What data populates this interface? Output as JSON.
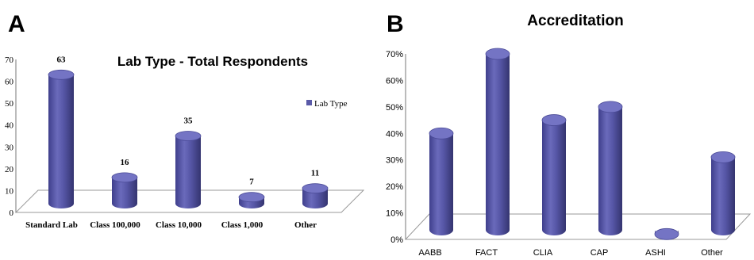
{
  "panels": {
    "a": {
      "letter": "A"
    },
    "b": {
      "letter": "B"
    }
  },
  "colors": {
    "bar_body": "#5a5aa8",
    "bar_dark": "#3d3d86",
    "bar_light": "#8c8cd0",
    "bar_top": "#6f6fbf",
    "axis": "#555555",
    "text": "#000000"
  },
  "chart_data": [
    {
      "type": "bar",
      "title": "Lab Type - Total Respondents",
      "categories": [
        "Standard Lab",
        "Class 100,000",
        "Class 10,000",
        "Class 1,000",
        "Other"
      ],
      "series": [
        {
          "name": "Lab Type",
          "values": [
            63,
            16,
            35,
            7,
            11
          ]
        }
      ],
      "data_labels": [
        "63",
        "16",
        "35",
        "7",
        "11"
      ],
      "ylim": [
        0,
        70
      ],
      "yticks": [
        "0",
        "10",
        "20",
        "30",
        "40",
        "50",
        "60",
        "70"
      ],
      "legend": "right",
      "style": "3d-cylinder"
    },
    {
      "type": "bar",
      "title": "Accreditation",
      "categories": [
        "AABB",
        "FACT",
        "CLIA",
        "CAP",
        "ASHI",
        "Other"
      ],
      "values": [
        40,
        70,
        45,
        50,
        2,
        31
      ],
      "ylim": [
        0,
        70
      ],
      "yticks": [
        "0%",
        "10%",
        "20%",
        "30%",
        "40%",
        "50%",
        "60%",
        "70%"
      ],
      "legend": "none",
      "style": "3d-cylinder"
    }
  ]
}
